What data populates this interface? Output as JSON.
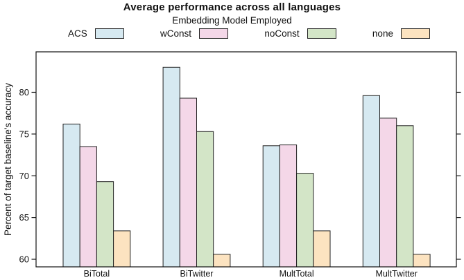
{
  "title": "Average performance across all languages",
  "legend": {
    "title": "Embedding Model Employed"
  },
  "chart_data": {
    "type": "bar",
    "title": "Average performance across all languages",
    "legend_title": "Embedding Model Employed",
    "legend_position": "top",
    "categories": [
      "BiTotal",
      "BiTwitter",
      "MultTotal",
      "MultTwitter"
    ],
    "series": [
      {
        "name": "ACS",
        "color": "#d6e9f1",
        "values": [
          76.2,
          83.0,
          73.6,
          79.6
        ]
      },
      {
        "name": "wConst",
        "color": "#f4d7e8",
        "values": [
          73.5,
          79.3,
          73.7,
          76.9
        ]
      },
      {
        "name": "noConst",
        "color": "#d3e5c7",
        "values": [
          69.3,
          75.3,
          70.3,
          76.0
        ]
      },
      {
        "name": "none",
        "color": "#fce3c0",
        "values": [
          63.4,
          60.6,
          63.4,
          60.6
        ]
      }
    ],
    "xlabel": "",
    "ylabel": "Percent of target baseline's accuracy",
    "ylim": [
      59.1,
      84.8
    ],
    "yticks": [
      60,
      65,
      70,
      75,
      80
    ],
    "grid": false,
    "bar_edge_color": "#222222",
    "axis_color": "#111111"
  }
}
